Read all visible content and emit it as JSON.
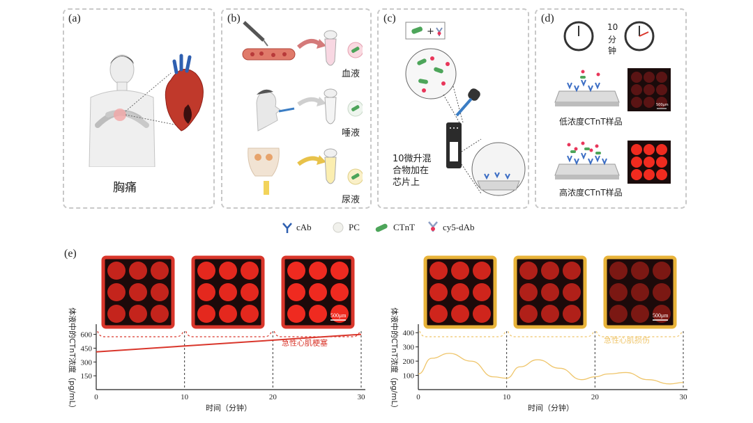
{
  "panels": {
    "a": {
      "label": "(a)",
      "caption": "胸痛"
    },
    "b": {
      "label": "(b)",
      "blood": "血液",
      "saliva": "唾液",
      "urine": "尿液"
    },
    "c": {
      "label": "(c)",
      "note": "10微升混\n合物加在\n芯片上"
    },
    "d": {
      "label": "(d)",
      "time_line1": "10",
      "time_line2": "分",
      "time_line3": "钟",
      "low": "低浓度CTnT样品",
      "high": "高浓度CTnT样品",
      "scalebar": "500μm"
    },
    "e": {
      "label": "(e)"
    }
  },
  "legend": [
    {
      "icon": "antibody-blue-icon",
      "text": "cAb"
    },
    {
      "icon": "pc-circle-icon",
      "text": "PC"
    },
    {
      "icon": "ctnt-green-icon",
      "text": "CTnT"
    },
    {
      "icon": "cy5-antibody-icon",
      "text": "cy5-dAb"
    }
  ],
  "chart_data": [
    {
      "type": "line",
      "xlabel": "时间（分钟）",
      "ylabel": "体液中的CTnT浓度（pg/mL）",
      "x_ticks": [
        0,
        10,
        20,
        30
      ],
      "y_ticks": [
        150,
        300,
        450,
        600
      ],
      "ylim": [
        0,
        680
      ],
      "xlim": [
        0,
        30
      ],
      "series": [
        {
          "name": "急性心肌梗塞",
          "color": "#d9362b",
          "x": [
            0,
            30
          ],
          "y": [
            410,
            600
          ]
        }
      ],
      "annotation": "急性心肌梗塞",
      "scalebar": "500μm",
      "frame_color": "#d9362b"
    },
    {
      "type": "line",
      "xlabel": "时间（分钟）",
      "ylabel": "体液中的CTnT浓度（pg/mL）",
      "x_ticks": [
        0,
        10,
        20,
        30
      ],
      "y_ticks": [
        100,
        200,
        300,
        400
      ],
      "ylim": [
        0,
        440
      ],
      "xlim": [
        0,
        30
      ],
      "series": [
        {
          "name": "急性心肌损伤",
          "color": "#efc56a",
          "x": [
            0,
            1.5,
            3.5,
            6,
            8.5,
            10,
            11.5,
            13.5,
            16,
            18.5,
            20,
            21.5,
            23.5,
            26,
            28.5,
            30
          ],
          "y": [
            110,
            220,
            255,
            200,
            90,
            80,
            160,
            210,
            150,
            70,
            90,
            110,
            120,
            70,
            40,
            50
          ]
        }
      ],
      "annotation": "急性心肌损伤",
      "scalebar": "500μm",
      "frame_color": "#e8b339"
    }
  ]
}
